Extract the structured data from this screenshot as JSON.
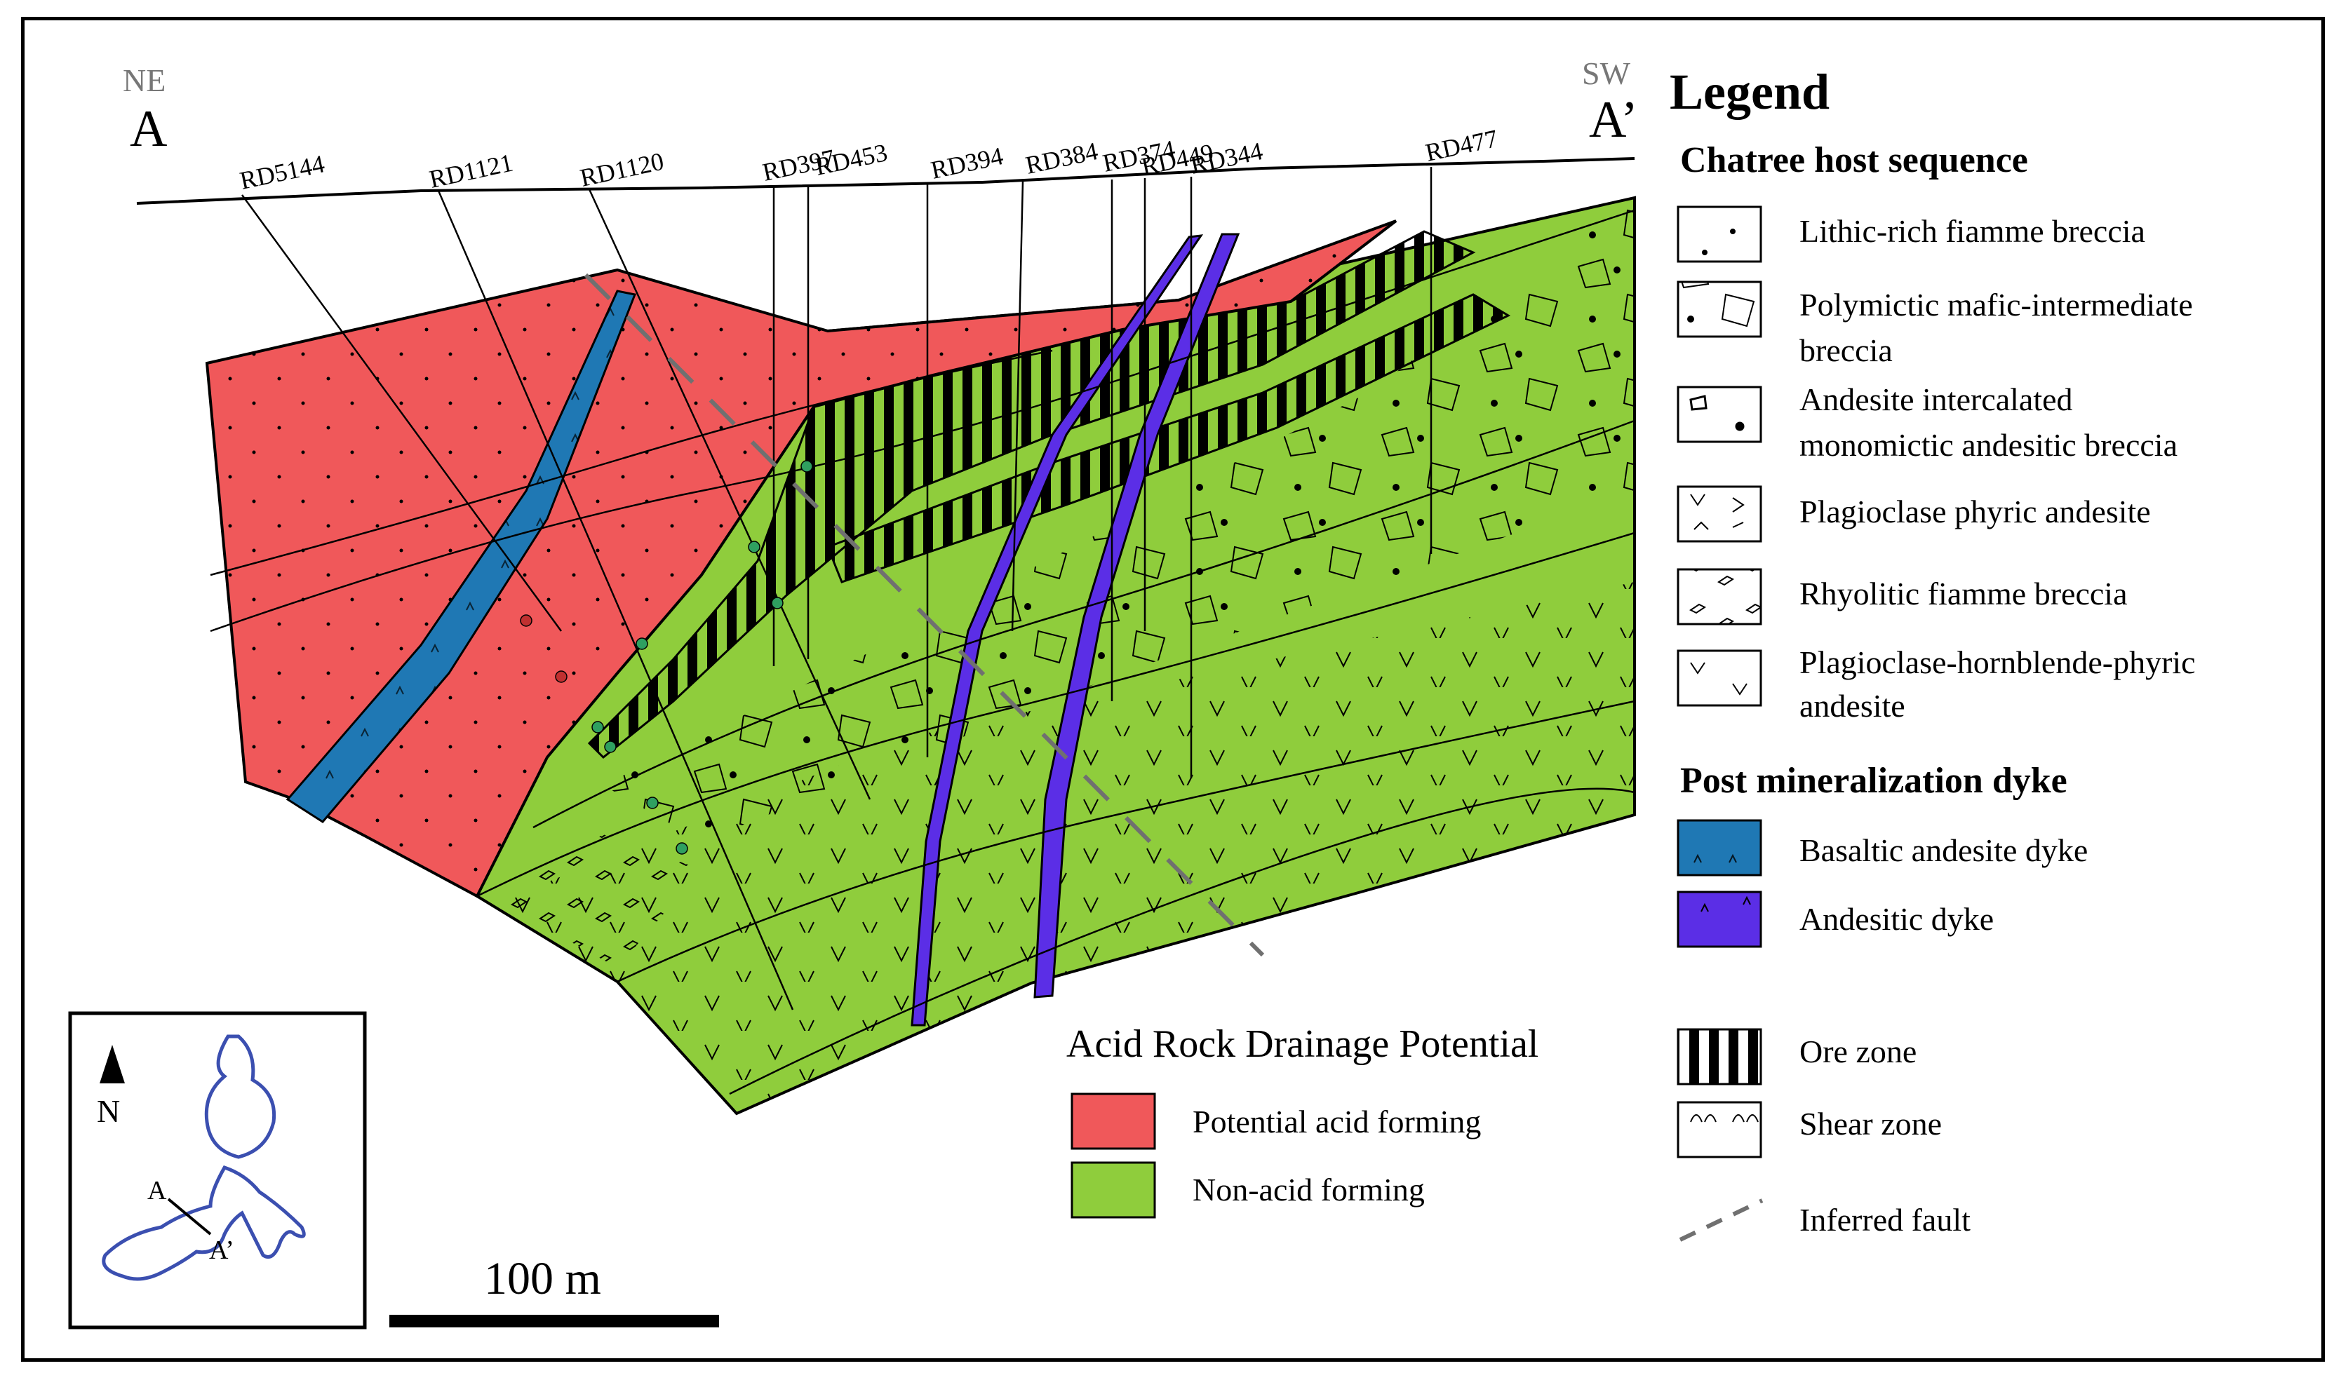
{
  "section": {
    "start_label": "A",
    "start_direction": "NE",
    "end_label": "A’",
    "end_direction": "SW",
    "drillholes": [
      "RD5144",
      "RD1121",
      "RD1120",
      "RD397",
      "RD453",
      "RD394",
      "RD384",
      "RD374",
      "RD449",
      "RD344",
      "RD477"
    ]
  },
  "legend": {
    "title": "Legend",
    "host_heading": "Chatree host sequence",
    "host_units": [
      {
        "line1": "Lithic-rich fiamme breccia",
        "line2": ""
      },
      {
        "line1": "Polymictic mafic-intermediate",
        "line2": "breccia"
      },
      {
        "line1": "Andesite intercalated",
        "line2": "monomictic andesitic breccia"
      },
      {
        "line1": "Plagioclase phyric andesite",
        "line2": ""
      },
      {
        "line1": "Rhyolitic fiamme breccia",
        "line2": ""
      },
      {
        "line1": "Plagioclase-hornblende-phyric",
        "line2": "andesite"
      }
    ],
    "dyke_heading": "Post mineralization dyke",
    "dykes": [
      {
        "label": "Basaltic andesite dyke",
        "color": "#1f78b4"
      },
      {
        "label": "Andesitic dyke",
        "color": "#5b2ee6"
      }
    ],
    "structures": [
      {
        "label": "Ore zone"
      },
      {
        "label": "Shear zone"
      },
      {
        "label": "Inferred fault"
      }
    ]
  },
  "ard": {
    "title": "Acid Rock Drainage Potential",
    "items": [
      {
        "label": "Potential acid forming",
        "color": "#f0585a"
      },
      {
        "label": "Non-acid forming",
        "color": "#8fcd3c"
      }
    ]
  },
  "scale": {
    "label": "100 m"
  },
  "inset": {
    "north_label": "N",
    "a_label": "A",
    "a_prime_label": "A’",
    "outline_color": "#3b4fb0"
  }
}
